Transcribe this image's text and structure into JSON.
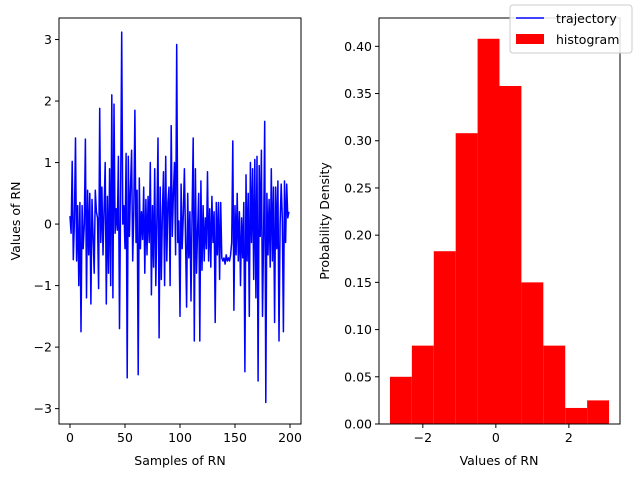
{
  "chart_data": [
    {
      "type": "line",
      "title": "",
      "xlabel": "Samples of RN",
      "ylabel": "Values of RN",
      "xlim": [
        -10,
        210
      ],
      "ylim": [
        -3.25,
        3.35
      ],
      "xticks": [
        0,
        50,
        100,
        150,
        200
      ],
      "yticks": [
        -3,
        -2,
        -1,
        0,
        1,
        2,
        3
      ],
      "series": [
        {
          "name": "trajectory",
          "color": "#0000ff",
          "x_start": 0,
          "y": [
            0.13,
            -0.15,
            1.02,
            -0.58,
            0.05,
            1.4,
            -0.6,
            0.3,
            -1.0,
            0.35,
            -1.75,
            0.3,
            -0.4,
            0.0,
            1.38,
            -1.2,
            0.55,
            -0.5,
            0.5,
            -1.3,
            0.4,
            -0.2,
            -0.8,
            0.55,
            0.2,
            0.1,
            -1.05,
            1.88,
            -0.3,
            0.6,
            -0.5,
            0.25,
            1.0,
            -1.3,
            0.45,
            -0.8,
            0.9,
            -1.0,
            2.1,
            -1.2,
            1.95,
            -0.15,
            0.25,
            -0.1,
            1.1,
            -1.7,
            0.4,
            3.12,
            0.0,
            0.3,
            -0.4,
            1.15,
            -2.5,
            1.1,
            -0.2,
            0.6,
            1.2,
            -0.6,
            0.2,
            1.85,
            -0.3,
            0.55,
            -2.45,
            0.75,
            -0.4,
            0.2,
            -0.25,
            0.6,
            -0.8,
            0.4,
            -0.5,
            0.45,
            -0.3,
            1.0,
            -1.15,
            0.3,
            -0.7,
            0.9,
            -1.0,
            0.1,
            1.4,
            -1.85,
            0.6,
            -0.9,
            0.2,
            0.85,
            -1.0,
            1.1,
            -0.6,
            0.35,
            0.6,
            -1.0,
            1.6,
            -0.2,
            0.5,
            1.0,
            -0.5,
            2.92,
            -0.3,
            0.05,
            -1.5,
            0.65,
            -0.4,
            0.15,
            0.9,
            -0.2,
            -1.35,
            0.5,
            -0.55,
            0.2,
            -1.25,
            0.2,
            1.4,
            -1.9,
            0.9,
            -0.8,
            -0.1,
            0.5,
            -1.9,
            0.7,
            -0.75,
            0.3,
            -0.6,
            0.1,
            -0.4,
            0.85,
            -0.6,
            0.25,
            -0.7,
            0.45,
            -0.3,
            0.2,
            -1.6,
            0.35,
            -0.5,
            0.35,
            -0.9,
            0.35,
            -0.55,
            -0.6,
            -0.55,
            -0.65,
            -0.5,
            -0.6,
            -0.55,
            -0.6,
            -0.5,
            -0.3,
            1.35,
            -1.4,
            0.3,
            -0.5,
            0.5,
            -0.6,
            0.2,
            -1.0,
            0.1,
            -0.55,
            0.35,
            -2.4,
            0.8,
            -0.6,
            0.5,
            -1.5,
            1.0,
            -0.3,
            0.9,
            -0.9,
            1.05,
            -1.2,
            1.1,
            -2.55,
            0.95,
            -0.2,
            1.2,
            -1.5,
            -0.2,
            1.67,
            -2.9,
            0.5,
            -0.5,
            0.4,
            -0.7,
            0.9,
            -0.6,
            0.6,
            -1.6,
            0.6,
            -0.4,
            0.7,
            -1.9,
            0.0,
            0.65,
            0.1,
            -1.75,
            0.7,
            -0.3,
            0.65,
            0.1,
            0.2
          ]
        }
      ]
    },
    {
      "type": "bar",
      "title": "",
      "xlabel": "Values of RN",
      "ylabel": "Probability Density",
      "xlim": [
        -3.2,
        3.4
      ],
      "ylim": [
        0,
        0.43
      ],
      "xticks": [
        -2,
        0,
        2
      ],
      "yticks": [
        0.0,
        0.05,
        0.1,
        0.15,
        0.2,
        0.25,
        0.3,
        0.35,
        0.4
      ],
      "ytick_labels": [
        "0.00",
        "0.05",
        "0.10",
        "0.15",
        "0.20",
        "0.25",
        "0.30",
        "0.35",
        "0.40"
      ],
      "bin_edges": [
        -2.9,
        -2.3,
        -1.7,
        -1.1,
        -0.5,
        0.1,
        0.7,
        1.3,
        1.9,
        2.5,
        3.1
      ],
      "values": [
        0.05,
        0.083,
        0.183,
        0.308,
        0.408,
        0.358,
        0.15,
        0.083,
        0.017,
        0.025
      ],
      "color": "#ff0000"
    }
  ],
  "legend": {
    "position": "top-right",
    "items": [
      {
        "label": "trajectory",
        "kind": "line",
        "color": "#0000ff"
      },
      {
        "label": "histogram",
        "kind": "patch",
        "color": "#ff0000"
      }
    ]
  }
}
